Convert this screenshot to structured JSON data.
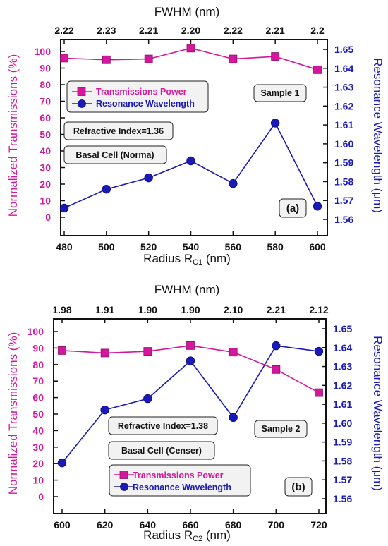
{
  "chart_data": [
    {
      "type": "line",
      "panel_label": "(a)",
      "x": [
        480,
        500,
        520,
        540,
        560,
        580,
        600
      ],
      "xlim": [
        480,
        600
      ],
      "xlabel_main": "Radius R",
      "xlabel_sub": "C1",
      "xlabel_unit": " (nm)",
      "top_label": "FWHM (nm)",
      "top_ticks": [
        "2.22",
        "2.23",
        "2.21",
        "2.20",
        "2.22",
        "2.21",
        "2.2"
      ],
      "y_left_label": "Normalized Transmissions (%)",
      "y_left_lim": [
        0,
        100
      ],
      "y_left_ticks": [
        0,
        10,
        20,
        30,
        40,
        50,
        60,
        70,
        80,
        90,
        100
      ],
      "y_right_label": "Resonance Wavelength (μm)",
      "y_right_lim": [
        1.56,
        1.65
      ],
      "y_right_ticks": [
        "1.56",
        "1.57",
        "1.58",
        "1.59",
        "1.60",
        "1.61",
        "1.62",
        "1.63",
        "1.64",
        "1.65"
      ],
      "series": [
        {
          "name": "Transmissions Power",
          "axis": "left",
          "color": "#d4179c",
          "marker": "square",
          "values": [
            96,
            95,
            95.5,
            102,
            95.5,
            97,
            89
          ]
        },
        {
          "name": "Resonance Wavelength",
          "axis": "right",
          "color": "#1a1ab8",
          "marker": "circle",
          "values": [
            1.566,
            1.576,
            1.582,
            1.591,
            1.579,
            1.611,
            1.567
          ]
        }
      ],
      "annotations": {
        "refractive_index": "Refractive Index=1.36",
        "cell": "Basal Cell (Norma)",
        "sample": "Sample 1"
      }
    },
    {
      "type": "line",
      "panel_label": "(b)",
      "x": [
        600,
        620,
        640,
        660,
        680,
        700,
        720
      ],
      "xlim": [
        600,
        720
      ],
      "xlabel_main": "Radius R",
      "xlabel_sub": "C2",
      "xlabel_unit": " (nm)",
      "top_label": "FWHM (nm)",
      "top_ticks": [
        "1.98",
        "1.91",
        "1.90",
        "1.90",
        "2.10",
        "2.21",
        "2.12"
      ],
      "y_left_label": "Normalized Transmissions (%)",
      "y_left_lim": [
        0,
        100
      ],
      "y_left_ticks": [
        0,
        10,
        20,
        30,
        40,
        50,
        60,
        70,
        80,
        90,
        100
      ],
      "y_right_label": "Resonance Wavelength (μm)",
      "y_right_lim": [
        1.56,
        1.65
      ],
      "y_right_ticks": [
        "1.56",
        "1.57",
        "1.58",
        "1.59",
        "1.60",
        "1.61",
        "1.62",
        "1.63",
        "1.64",
        "1.65"
      ],
      "series": [
        {
          "name": "Transmissions Power",
          "axis": "left",
          "color": "#d4179c",
          "marker": "square",
          "values": [
            88.5,
            87,
            88,
            91.5,
            87.5,
            77,
            63
          ]
        },
        {
          "name": "Resonance Wavelength",
          "axis": "right",
          "color": "#1a1ab8",
          "marker": "circle",
          "values": [
            1.579,
            1.607,
            1.613,
            1.633,
            1.603,
            1.641,
            1.638
          ]
        }
      ],
      "annotations": {
        "refractive_index": "Refractive Index=1.38",
        "cell": "Basal Cell (Censer)",
        "sample": "Sample 2"
      }
    }
  ]
}
